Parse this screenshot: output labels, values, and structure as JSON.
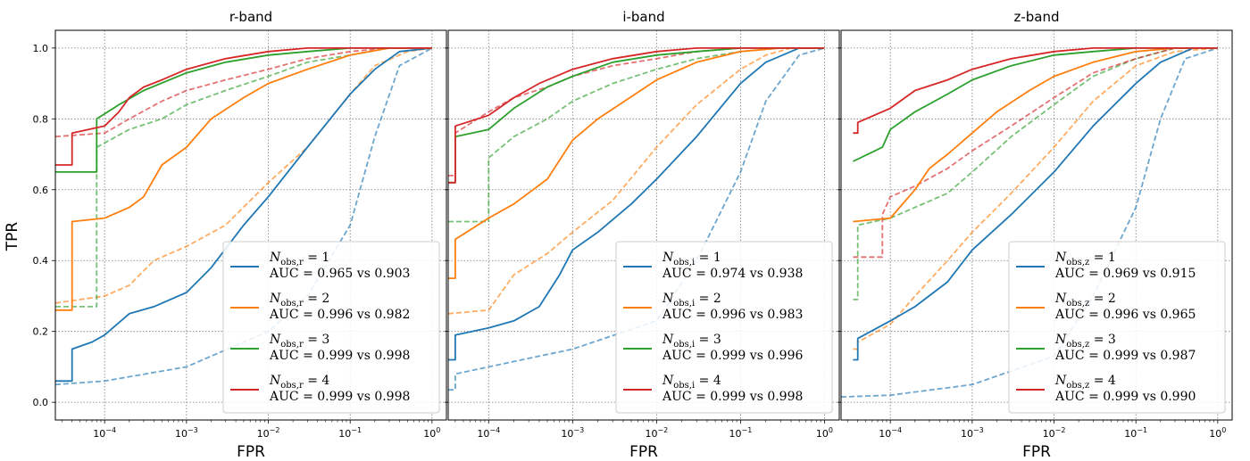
{
  "figure": {
    "ylabel": "TPR",
    "xlabel": "FPR",
    "colors": {
      "1": "#1f77b4",
      "2": "#ff7f0e",
      "3": "#2ca02c",
      "4": "#d62728"
    }
  },
  "chart_data": [
    {
      "type": "line",
      "title": "r-band",
      "xlabel": "FPR",
      "ylabel": "TPR",
      "xscale": "log",
      "xlim": [
        2.5e-05,
        1.5
      ],
      "ylim": [
        -0.05,
        1.05
      ],
      "xticks": [
        "10^-4",
        "10^-3",
        "10^-2",
        "10^-1",
        "10^0"
      ],
      "yticks": [
        "0.0",
        "0.2",
        "0.4",
        "0.6",
        "0.8",
        "1.0"
      ],
      "grid": true,
      "legend_position": "lower-right",
      "legend": [
        {
          "name": "N_obs,r = 1",
          "auc": "AUC = 0.965 vs 0.903"
        },
        {
          "name": "N_obs,r = 2",
          "auc": "AUC = 0.996 vs 0.982"
        },
        {
          "name": "N_obs,r = 3",
          "auc": "AUC = 0.999 vs 0.998"
        },
        {
          "name": "N_obs,r = 4",
          "auc": "AUC = 0.999 vs 0.998"
        }
      ],
      "series": [
        {
          "n": 1,
          "style": "solid",
          "x": [
            2.5e-05,
            4e-05,
            4e-05,
            7e-05,
            0.0001,
            0.0002,
            0.0004,
            0.001,
            0.002,
            0.005,
            0.01,
            0.03,
            0.1,
            0.2,
            0.4,
            1
          ],
          "y": [
            0.06,
            0.06,
            0.15,
            0.17,
            0.19,
            0.25,
            0.27,
            0.31,
            0.38,
            0.5,
            0.58,
            0.72,
            0.87,
            0.94,
            0.99,
            1.0
          ]
        },
        {
          "n": 1,
          "style": "dashed",
          "x": [
            2.5e-05,
            0.0001,
            0.001,
            0.01,
            0.03,
            0.1,
            0.2,
            0.4,
            1
          ],
          "y": [
            0.05,
            0.06,
            0.1,
            0.2,
            0.3,
            0.5,
            0.75,
            0.95,
            1.0
          ]
        },
        {
          "n": 2,
          "style": "solid",
          "x": [
            2.5e-05,
            4e-05,
            4e-05,
            0.0001,
            0.0002,
            0.0003,
            0.0005,
            0.001,
            0.002,
            0.005,
            0.01,
            0.03,
            0.1,
            0.3,
            1
          ],
          "y": [
            0.26,
            0.26,
            0.51,
            0.52,
            0.55,
            0.58,
            0.67,
            0.72,
            0.8,
            0.86,
            0.9,
            0.94,
            0.98,
            1.0,
            1.0
          ]
        },
        {
          "n": 2,
          "style": "dashed",
          "x": [
            2.5e-05,
            0.0001,
            0.0002,
            0.0004,
            0.001,
            0.003,
            0.01,
            0.03,
            0.1,
            0.2,
            0.5,
            1
          ],
          "y": [
            0.28,
            0.3,
            0.33,
            0.4,
            0.44,
            0.5,
            0.62,
            0.72,
            0.87,
            0.95,
            0.99,
            1.0
          ]
        },
        {
          "n": 3,
          "style": "solid",
          "x": [
            2.5e-05,
            8e-05,
            8e-05,
            0.00015,
            0.0003,
            0.001,
            0.003,
            0.01,
            0.03,
            0.1,
            1
          ],
          "y": [
            0.65,
            0.65,
            0.8,
            0.84,
            0.88,
            0.93,
            0.96,
            0.98,
            0.99,
            1.0,
            1.0
          ]
        },
        {
          "n": 3,
          "style": "dashed",
          "x": [
            2.5e-05,
            8e-05,
            8e-05,
            0.0002,
            0.0005,
            0.001,
            0.003,
            0.01,
            0.03,
            0.1,
            0.3,
            1
          ],
          "y": [
            0.27,
            0.27,
            0.72,
            0.77,
            0.8,
            0.84,
            0.88,
            0.92,
            0.96,
            0.98,
            1.0,
            1.0
          ]
        },
        {
          "n": 4,
          "style": "solid",
          "x": [
            2.5e-05,
            4e-05,
            4e-05,
            0.0001,
            0.00015,
            0.0002,
            0.0003,
            0.0005,
            0.001,
            0.003,
            0.01,
            0.03,
            0.1,
            1
          ],
          "y": [
            0.67,
            0.67,
            0.76,
            0.78,
            0.82,
            0.86,
            0.89,
            0.91,
            0.94,
            0.97,
            0.99,
            1.0,
            1.0,
            1.0
          ]
        },
        {
          "n": 4,
          "style": "dashed",
          "x": [
            2.5e-05,
            0.0001,
            0.0002,
            0.0005,
            0.001,
            0.003,
            0.01,
            0.03,
            0.1,
            0.3,
            1
          ],
          "y": [
            0.75,
            0.76,
            0.8,
            0.85,
            0.88,
            0.91,
            0.94,
            0.97,
            0.99,
            1.0,
            1.0
          ]
        }
      ]
    },
    {
      "type": "line",
      "title": "i-band",
      "xlabel": "FPR",
      "ylabel": "TPR",
      "xscale": "log",
      "xlim": [
        3.3e-05,
        1.5
      ],
      "ylim": [
        -0.05,
        1.05
      ],
      "xticks": [
        "10^-4",
        "10^-3",
        "10^-2",
        "10^-1",
        "10^0"
      ],
      "yticks": [
        "0.0",
        "0.2",
        "0.4",
        "0.6",
        "0.8",
        "1.0"
      ],
      "grid": true,
      "legend_position": "lower-right",
      "legend": [
        {
          "name": "N_obs,i = 1",
          "auc": "AUC = 0.974 vs 0.938"
        },
        {
          "name": "N_obs,i = 2",
          "auc": "AUC = 0.996 vs 0.983"
        },
        {
          "name": "N_obs,i = 3",
          "auc": "AUC = 0.999 vs 0.996"
        },
        {
          "name": "N_obs,i = 4",
          "auc": "AUC = 0.999 vs 0.998"
        }
      ],
      "series": [
        {
          "n": 1,
          "style": "solid",
          "x": [
            3.3e-05,
            4e-05,
            4e-05,
            0.0001,
            0.0002,
            0.0004,
            0.0007,
            0.001,
            0.002,
            0.005,
            0.01,
            0.03,
            0.1,
            0.2,
            0.5,
            1
          ],
          "y": [
            0.12,
            0.12,
            0.19,
            0.21,
            0.23,
            0.27,
            0.36,
            0.43,
            0.48,
            0.56,
            0.63,
            0.75,
            0.9,
            0.96,
            1.0,
            1.0
          ]
        },
        {
          "n": 1,
          "style": "dashed",
          "x": [
            3.3e-05,
            4e-05,
            4e-05,
            0.0001,
            0.001,
            0.01,
            0.03,
            0.1,
            0.2,
            0.5,
            1
          ],
          "y": [
            0.035,
            0.035,
            0.08,
            0.1,
            0.15,
            0.23,
            0.4,
            0.65,
            0.85,
            0.98,
            1.0
          ]
        },
        {
          "n": 2,
          "style": "solid",
          "x": [
            3.3e-05,
            4e-05,
            4e-05,
            0.0001,
            0.0002,
            0.0005,
            0.001,
            0.002,
            0.01,
            0.03,
            0.1,
            0.3,
            1
          ],
          "y": [
            0.35,
            0.35,
            0.46,
            0.52,
            0.56,
            0.63,
            0.74,
            0.8,
            0.91,
            0.96,
            0.99,
            1.0,
            1.0
          ]
        },
        {
          "n": 2,
          "style": "dashed",
          "x": [
            3.3e-05,
            0.0001,
            0.0002,
            0.0005,
            0.001,
            0.003,
            0.01,
            0.03,
            0.1,
            0.2,
            0.4,
            1
          ],
          "y": [
            0.25,
            0.26,
            0.36,
            0.42,
            0.48,
            0.57,
            0.72,
            0.84,
            0.94,
            0.98,
            1.0,
            1.0
          ]
        },
        {
          "n": 3,
          "style": "solid",
          "x": [
            3.3e-05,
            4e-05,
            4e-05,
            0.0001,
            0.0002,
            0.0005,
            0.001,
            0.003,
            0.01,
            0.03,
            0.1,
            1
          ],
          "y": [
            0.62,
            0.62,
            0.75,
            0.77,
            0.83,
            0.89,
            0.92,
            0.96,
            0.98,
            0.99,
            1.0,
            1.0
          ]
        },
        {
          "n": 3,
          "style": "dashed",
          "x": [
            3.3e-05,
            0.0001,
            0.0001,
            0.0002,
            0.0005,
            0.001,
            0.003,
            0.01,
            0.03,
            0.1,
            0.3,
            1
          ],
          "y": [
            0.51,
            0.51,
            0.69,
            0.75,
            0.8,
            0.85,
            0.9,
            0.94,
            0.97,
            0.99,
            1.0,
            1.0
          ]
        },
        {
          "n": 4,
          "style": "solid",
          "x": [
            3.3e-05,
            4e-05,
            4e-05,
            0.0001,
            0.0002,
            0.0004,
            0.001,
            0.003,
            0.01,
            0.03,
            0.1,
            1
          ],
          "y": [
            0.62,
            0.62,
            0.78,
            0.81,
            0.86,
            0.9,
            0.94,
            0.97,
            0.99,
            1.0,
            1.0,
            1.0
          ]
        },
        {
          "n": 4,
          "style": "dashed",
          "x": [
            3.3e-05,
            4e-05,
            4e-05,
            0.0001,
            0.0002,
            0.0005,
            0.001,
            0.003,
            0.01,
            0.03,
            0.1,
            1
          ],
          "y": [
            0.64,
            0.64,
            0.76,
            0.82,
            0.86,
            0.89,
            0.92,
            0.95,
            0.97,
            0.99,
            1.0,
            1.0
          ]
        }
      ]
    },
    {
      "type": "line",
      "title": "z-band",
      "xlabel": "FPR",
      "ylabel": "TPR",
      "xscale": "log",
      "xlim": [
        2.5e-05,
        1.5
      ],
      "ylim": [
        -0.05,
        1.05
      ],
      "xticks": [
        "10^-4",
        "10^-3",
        "10^-2",
        "10^-1",
        "10^0"
      ],
      "yticks": [
        "0.0",
        "0.2",
        "0.4",
        "0.6",
        "0.8",
        "1.0"
      ],
      "grid": true,
      "legend_position": "lower-right",
      "legend": [
        {
          "name": "N_obs,z = 1",
          "auc": "AUC = 0.969 vs 0.915"
        },
        {
          "name": "N_obs,z = 2",
          "auc": "AUC = 0.996 vs 0.965"
        },
        {
          "name": "N_obs,z = 3",
          "auc": "AUC = 0.999 vs 0.987"
        },
        {
          "name": "N_obs,z = 4",
          "auc": "AUC = 0.999 vs 0.990"
        }
      ],
      "series": [
        {
          "n": 1,
          "style": "solid",
          "x": [
            3.5e-05,
            4e-05,
            4e-05,
            0.0001,
            0.0002,
            0.0005,
            0.001,
            0.003,
            0.01,
            0.03,
            0.1,
            0.2,
            0.5,
            1
          ],
          "y": [
            0.12,
            0.12,
            0.18,
            0.23,
            0.27,
            0.34,
            0.43,
            0.53,
            0.65,
            0.78,
            0.9,
            0.96,
            1.0,
            1.0
          ]
        },
        {
          "n": 1,
          "style": "dashed",
          "x": [
            2.5e-05,
            0.0001,
            0.001,
            0.01,
            0.03,
            0.1,
            0.2,
            0.4,
            1
          ],
          "y": [
            0.015,
            0.02,
            0.05,
            0.13,
            0.3,
            0.55,
            0.8,
            0.97,
            1.0
          ]
        },
        {
          "n": 2,
          "style": "solid",
          "x": [
            3.5e-05,
            0.0001,
            0.0002,
            0.0003,
            0.0005,
            0.001,
            0.002,
            0.005,
            0.01,
            0.03,
            0.1,
            0.3,
            1
          ],
          "y": [
            0.51,
            0.52,
            0.6,
            0.66,
            0.7,
            0.76,
            0.82,
            0.88,
            0.92,
            0.96,
            0.99,
            1.0,
            1.0
          ]
        },
        {
          "n": 2,
          "style": "dashed",
          "x": [
            3.5e-05,
            4e-05,
            4e-05,
            0.0001,
            0.0002,
            0.0005,
            0.001,
            0.003,
            0.01,
            0.03,
            0.1,
            0.3,
            1
          ],
          "y": [
            0.15,
            0.15,
            0.17,
            0.22,
            0.3,
            0.4,
            0.48,
            0.59,
            0.72,
            0.85,
            0.95,
            0.99,
            1.0
          ]
        },
        {
          "n": 3,
          "style": "solid",
          "x": [
            3.5e-05,
            8e-05,
            0.0001,
            0.0002,
            0.0005,
            0.001,
            0.003,
            0.01,
            0.03,
            0.1,
            0.3,
            1
          ],
          "y": [
            0.68,
            0.72,
            0.77,
            0.82,
            0.87,
            0.91,
            0.95,
            0.98,
            0.99,
            1.0,
            1.0,
            1.0
          ]
        },
        {
          "n": 3,
          "style": "dashed",
          "x": [
            3.5e-05,
            4e-05,
            4e-05,
            0.0001,
            0.0002,
            0.0005,
            0.001,
            0.003,
            0.01,
            0.03,
            0.1,
            0.3,
            1
          ],
          "y": [
            0.29,
            0.29,
            0.5,
            0.52,
            0.55,
            0.59,
            0.65,
            0.75,
            0.84,
            0.92,
            0.97,
            1.0,
            1.0
          ]
        },
        {
          "n": 4,
          "style": "solid",
          "x": [
            3.5e-05,
            4e-05,
            4e-05,
            0.0001,
            0.0002,
            0.0005,
            0.001,
            0.003,
            0.01,
            0.03,
            0.1,
            1
          ],
          "y": [
            0.76,
            0.76,
            0.79,
            0.83,
            0.88,
            0.91,
            0.94,
            0.97,
            0.99,
            1.0,
            1.0,
            1.0
          ]
        },
        {
          "n": 4,
          "style": "dashed",
          "x": [
            3.5e-05,
            8e-05,
            8e-05,
            0.0001,
            0.0002,
            0.0005,
            0.001,
            0.003,
            0.01,
            0.03,
            0.1,
            0.3,
            1
          ],
          "y": [
            0.41,
            0.41,
            0.53,
            0.58,
            0.61,
            0.66,
            0.71,
            0.78,
            0.86,
            0.93,
            0.97,
            1.0,
            1.0
          ]
        }
      ]
    }
  ]
}
